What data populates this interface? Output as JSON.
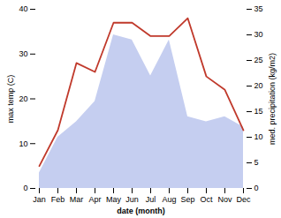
{
  "chart_data": {
    "type": "line",
    "categories": [
      "Jan",
      "Feb",
      "Mar",
      "Apr",
      "May",
      "Jun",
      "Jul",
      "Aug",
      "Sep",
      "Oct",
      "Nov",
      "Dec"
    ],
    "series": [
      {
        "type": "area",
        "axis": "y2",
        "color": "#c5cef0",
        "values": [
          3,
          10,
          13,
          17,
          30,
          29,
          22,
          29,
          14,
          13,
          14,
          12
        ]
      },
      {
        "type": "line",
        "color": "#c0392b",
        "values": [
          5,
          13,
          28,
          26,
          37,
          37,
          34,
          34,
          38,
          25,
          22,
          13
        ]
      }
    ],
    "xlabel": "date (month)",
    "ylabel": "max temp (C)",
    "y2label": "med. precipitation (kg/m2)",
    "ylim": [
      0,
      40
    ],
    "yticks": [
      0,
      10,
      20,
      30,
      40
    ],
    "y2lim": [
      0,
      35
    ],
    "y2ticks": [
      0,
      5,
      10,
      15,
      20,
      25,
      30,
      35
    ],
    "grid": false
  }
}
